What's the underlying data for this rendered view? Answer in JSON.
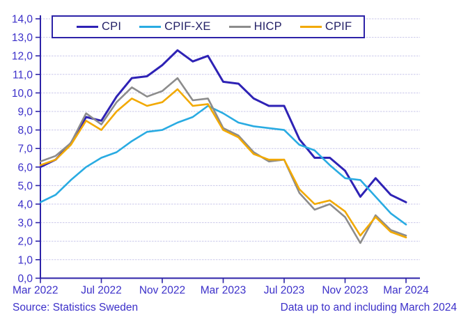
{
  "chart_data": {
    "type": "line",
    "title": "",
    "x": [
      "Mar 2022",
      "Apr 2022",
      "May 2022",
      "Jun 2022",
      "Jul 2022",
      "Aug 2022",
      "Sep 2022",
      "Oct 2022",
      "Nov 2022",
      "Dec 2022",
      "Jan 2023",
      "Feb 2023",
      "Mar 2023",
      "Apr 2023",
      "May 2023",
      "Jun 2023",
      "Jul 2023",
      "Aug 2023",
      "Sep 2023",
      "Oct 2023",
      "Nov 2023",
      "Dec 2023",
      "Jan 2024",
      "Feb 2024",
      "Mar 2024"
    ],
    "x_tick_labels": [
      "Mar 2022",
      "Jul 2022",
      "Nov 2022",
      "Mar 2023",
      "Jul 2023",
      "Nov 2023",
      "Mar 2024"
    ],
    "y_tick_labels": [
      "0,0",
      "1,0",
      "2,0",
      "3,0",
      "4,0",
      "5,0",
      "6,0",
      "7,0",
      "8,0",
      "9,0",
      "10,0",
      "11,0",
      "12,0",
      "13,0",
      "14,0"
    ],
    "ylim": [
      0,
      14
    ],
    "grid": true,
    "legend_position": "top",
    "series": [
      {
        "name": "CPI",
        "color": "#2e22b5",
        "values": [
          6.0,
          6.4,
          7.3,
          8.7,
          8.5,
          9.8,
          10.8,
          10.9,
          11.5,
          12.3,
          11.7,
          12.0,
          10.6,
          10.5,
          9.7,
          9.3,
          9.3,
          7.5,
          6.5,
          6.5,
          5.8,
          4.4,
          5.4,
          4.5,
          4.1
        ]
      },
      {
        "name": "CPIF-XE",
        "color": "#29abe2",
        "values": [
          4.1,
          4.5,
          5.3,
          6.0,
          6.5,
          6.8,
          7.4,
          7.9,
          8.0,
          8.4,
          8.7,
          9.3,
          8.9,
          8.4,
          8.2,
          8.1,
          8.0,
          7.2,
          6.9,
          6.1,
          5.4,
          5.3,
          4.4,
          3.5,
          2.9
        ]
      },
      {
        "name": "HICP",
        "color": "#8c8c8c",
        "values": [
          6.3,
          6.6,
          7.3,
          8.9,
          8.3,
          9.5,
          10.3,
          9.8,
          10.1,
          10.8,
          9.6,
          9.7,
          8.1,
          7.7,
          6.8,
          6.3,
          6.4,
          4.6,
          3.7,
          4.0,
          3.3,
          1.9,
          3.4,
          2.6,
          2.3
        ]
      },
      {
        "name": "CPIF",
        "color": "#f2a900",
        "values": [
          6.1,
          6.4,
          7.2,
          8.5,
          8.0,
          9.0,
          9.7,
          9.3,
          9.5,
          10.2,
          9.3,
          9.4,
          8.0,
          7.6,
          6.7,
          6.4,
          6.4,
          4.8,
          4.0,
          4.2,
          3.6,
          2.3,
          3.3,
          2.5,
          2.2
        ]
      }
    ]
  },
  "footer": {
    "source": "Source: Statistics Sweden",
    "note": "Data up to and including March 2024"
  },
  "colors": {
    "axis": "#2d23a8",
    "grid": "#c9c7ea",
    "tick_text": "#3b2fc9",
    "legend_text": "#232066",
    "background": "#ffffff"
  }
}
